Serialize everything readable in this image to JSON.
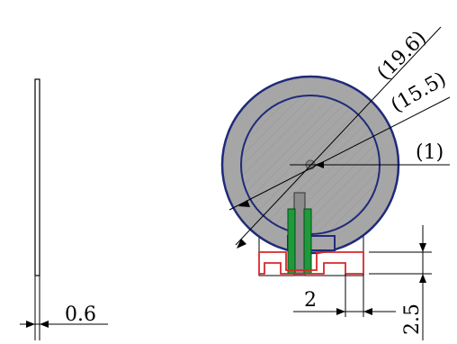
{
  "dimensions": {
    "thickness": "0.6",
    "outer_diameter": "(19.6)",
    "inner_diameter": "(15.5)",
    "center_hole": "(1)",
    "width": "2",
    "height": "2.5"
  },
  "colors": {
    "ring_fill": "#a6a6a6",
    "ring_outline": "#1f2a7a",
    "hatch": "#9a9a9a",
    "terminal_green": "#1d9b3a",
    "terminal_shaft": "#8c8c8c",
    "socket_red": "#d62828",
    "line": "#000000"
  }
}
